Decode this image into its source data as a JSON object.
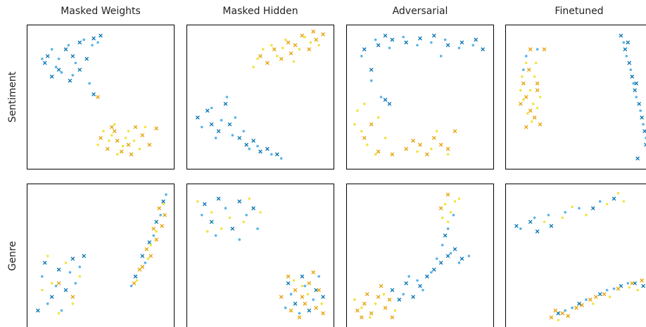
{
  "chart_data": [
    {
      "type": "scatter",
      "title": "Masked Weights",
      "ylabel": "Sentiment",
      "xlim": [
        0,
        100
      ],
      "ylim": [
        0,
        100
      ],
      "series": [
        {
          "color": "#0072b2",
          "marker": "x",
          "x": [
            10,
            20,
            30,
            35,
            45,
            25,
            15,
            40,
            28,
            50,
            12,
            35,
            45
          ],
          "values": [
            75,
            70,
            80,
            90,
            93,
            85,
            65,
            78,
            62,
            95,
            80,
            70,
            52
          ]
        },
        {
          "color": "#56b4e9",
          "marker": "dot",
          "x": [
            8,
            18,
            27,
            38,
            44,
            22,
            32,
            42,
            15,
            48,
            30,
            20
          ],
          "values": [
            78,
            72,
            88,
            92,
            88,
            68,
            75,
            60,
            85,
            90,
            66,
            78
          ]
        },
        {
          "color": "#e69f00",
          "marker": "x",
          "x": [
            50,
            60,
            70,
            80,
            65,
            55,
            75,
            90,
            85,
            62,
            72,
            58,
            48
          ],
          "values": [
            20,
            25,
            15,
            22,
            10,
            12,
            28,
            27,
            15,
            18,
            8,
            28,
            50
          ]
        },
        {
          "color": "#f0e442",
          "marker": "dot",
          "x": [
            48,
            58,
            68,
            78,
            62,
            52,
            70,
            82,
            66,
            74,
            56,
            60
          ],
          "values": [
            15,
            22,
            20,
            12,
            8,
            25,
            25,
            28,
            14,
            18,
            18,
            30
          ]
        }
      ]
    },
    {
      "type": "scatter",
      "title": "Masked Hidden",
      "xlim": [
        0,
        100
      ],
      "ylim": [
        0,
        100
      ],
      "series": [
        {
          "color": "#0072b2",
          "marker": "x",
          "x": [
            5,
            12,
            20,
            28,
            35,
            45,
            55,
            62,
            15,
            25,
            40,
            50
          ],
          "values": [
            35,
            40,
            25,
            30,
            20,
            18,
            12,
            8,
            30,
            45,
            15,
            10
          ]
        },
        {
          "color": "#56b4e9",
          "marker": "dot",
          "x": [
            8,
            15,
            22,
            30,
            38,
            48,
            58,
            65,
            18,
            32,
            42,
            26
          ],
          "values": [
            28,
            42,
            33,
            22,
            25,
            14,
            8,
            5,
            20,
            35,
            12,
            50
          ]
        },
        {
          "color": "#e69f00",
          "marker": "x",
          "x": [
            50,
            60,
            70,
            80,
            90,
            65,
            75,
            85,
            95,
            55,
            72,
            88
          ],
          "values": [
            80,
            85,
            90,
            95,
            92,
            78,
            88,
            85,
            96,
            75,
            82,
            98
          ]
        },
        {
          "color": "#f0e442",
          "marker": "dot",
          "x": [
            45,
            52,
            62,
            68,
            78,
            86,
            92,
            58,
            74,
            82,
            48,
            66
          ],
          "values": [
            72,
            85,
            80,
            92,
            85,
            90,
            88,
            88,
            76,
            94,
            78,
            86
          ]
        }
      ]
    },
    {
      "type": "scatter",
      "title": "Adversarial",
      "xlim": [
        0,
        100
      ],
      "ylim": [
        0,
        100
      ],
      "series": [
        {
          "color": "#0072b2",
          "marker": "x",
          "x": [
            10,
            20,
            30,
            40,
            50,
            60,
            70,
            80,
            90,
            95,
            15,
            25,
            25,
            28
          ],
          "values": [
            85,
            88,
            92,
            90,
            93,
            95,
            88,
            90,
            92,
            85,
            70,
            95,
            48,
            45
          ]
        },
        {
          "color": "#56b4e9",
          "marker": "dot",
          "x": [
            8,
            18,
            28,
            38,
            48,
            58,
            68,
            78,
            88,
            15,
            22,
            65
          ],
          "values": [
            80,
            92,
            86,
            94,
            88,
            90,
            92,
            86,
            88,
            62,
            50,
            80
          ]
        },
        {
          "color": "#e69f00",
          "marker": "x",
          "x": [
            10,
            20,
            30,
            40,
            50,
            55,
            60,
            70,
            75,
            65,
            15,
            45
          ],
          "values": [
            20,
            10,
            8,
            12,
            15,
            8,
            20,
            12,
            25,
            15,
            30,
            18
          ]
        },
        {
          "color": "#f0e442",
          "marker": "dot",
          "x": [
            5,
            8,
            12,
            18,
            25,
            3,
            48,
            58,
            62,
            70,
            10,
            20
          ],
          "values": [
            40,
            25,
            15,
            8,
            20,
            30,
            10,
            12,
            25,
            8,
            45,
            35
          ]
        }
      ]
    },
    {
      "type": "scatter",
      "title": "Finetuned",
      "xlim": [
        0,
        100
      ],
      "ylim": [
        0,
        100
      ],
      "series": [
        {
          "color": "#0072b2",
          "marker": "x",
          "x": [
            80,
            83,
            86,
            88,
            90,
            93,
            95,
            97,
            98,
            92,
            85,
            91
          ],
          "values": [
            95,
            85,
            75,
            65,
            55,
            45,
            35,
            25,
            15,
            5,
            90,
            60
          ]
        },
        {
          "color": "#56b4e9",
          "marker": "dot",
          "x": [
            82,
            84,
            87,
            89,
            91,
            94,
            96,
            98,
            99,
            12,
            10,
            20
          ],
          "values": [
            90,
            80,
            70,
            60,
            50,
            40,
            30,
            20,
            10,
            80,
            70,
            85
          ]
        },
        {
          "color": "#e69f00",
          "marker": "x",
          "x": [
            15,
            25,
            10,
            12,
            15,
            18,
            22,
            20,
            8,
            14,
            20,
            12
          ],
          "values": [
            85,
            85,
            60,
            50,
            40,
            35,
            30,
            55,
            45,
            70,
            60,
            28
          ]
        },
        {
          "color": "#f0e442",
          "marker": "dot",
          "x": [
            12,
            18,
            15,
            10,
            20,
            16,
            8,
            22,
            13,
            17,
            9,
            19
          ],
          "values": [
            75,
            65,
            55,
            48,
            42,
            32,
            55,
            50,
            38,
            45,
            65,
            75
          ]
        }
      ]
    },
    {
      "type": "scatter",
      "ylabel": "Genre",
      "xlim": [
        0,
        100
      ],
      "ylim": [
        0,
        100
      ],
      "series": [
        {
          "color": "#0072b2",
          "marker": "x",
          "x": [
            10,
            20,
            30,
            38,
            15,
            25,
            5,
            75,
            80,
            85,
            90,
            95
          ],
          "values": [
            45,
            40,
            48,
            50,
            20,
            25,
            10,
            35,
            50,
            60,
            75,
            90
          ]
        },
        {
          "color": "#56b4e9",
          "marker": "dot",
          "x": [
            8,
            18,
            28,
            35,
            12,
            22,
            32,
            72,
            82,
            88,
            93,
            97
          ],
          "values": [
            35,
            28,
            38,
            42,
            15,
            10,
            30,
            28,
            45,
            65,
            80,
            95
          ]
        },
        {
          "color": "#e69f00",
          "marker": "x",
          "x": [
            78,
            83,
            88,
            92,
            96,
            86,
            74,
            90,
            20,
            30,
            94,
            80
          ],
          "values": [
            40,
            55,
            70,
            85,
            80,
            50,
            30,
            62,
            30,
            20,
            72,
            42
          ]
        },
        {
          "color": "#f0e442",
          "marker": "dot",
          "x": [
            12,
            25,
            15,
            30,
            8,
            20,
            35,
            76,
            84,
            90,
            95,
            86
          ],
          "values": [
            50,
            45,
            30,
            15,
            25,
            8,
            35,
            32,
            48,
            68,
            88,
            58
          ]
        }
      ]
    },
    {
      "type": "scatter",
      "xlim": [
        0,
        100
      ],
      "ylim": [
        0,
        100
      ],
      "series": [
        {
          "color": "#0072b2",
          "marker": "x",
          "x": [
            10,
            20,
            35,
            45,
            15,
            30,
            70,
            80,
            90,
            75,
            85,
            95
          ],
          "values": [
            88,
            92,
            90,
            85,
            75,
            70,
            30,
            35,
            25,
            15,
            10,
            20
          ]
        },
        {
          "color": "#56b4e9",
          "marker": "dot",
          "x": [
            8,
            25,
            40,
            18,
            35,
            48,
            72,
            82,
            92,
            78,
            88,
            68
          ],
          "values": [
            80,
            85,
            80,
            65,
            62,
            70,
            22,
            28,
            35,
            8,
            18,
            12
          ]
        },
        {
          "color": "#e69f00",
          "marker": "x",
          "x": [
            70,
            80,
            90,
            85,
            75,
            95,
            65,
            88,
            78,
            92,
            72,
            82
          ],
          "values": [
            35,
            20,
            12,
            30,
            25,
            8,
            20,
            38,
            5,
            25,
            10,
            15
          ]
        },
        {
          "color": "#f0e442",
          "marker": "dot",
          "x": [
            5,
            15,
            28,
            42,
            22,
            38,
            50,
            12,
            74,
            84,
            94,
            80
          ],
          "values": [
            90,
            82,
            78,
            92,
            70,
            75,
            82,
            68,
            32,
            22,
            15,
            28
          ]
        }
      ]
    },
    {
      "type": "scatter",
      "xlim": [
        0,
        100
      ],
      "ylim": [
        0,
        100
      ],
      "series": [
        {
          "color": "#0072b2",
          "marker": "x",
          "x": [
            30,
            40,
            45,
            55,
            60,
            65,
            70,
            75,
            80,
            68,
            35,
            50
          ],
          "values": [
            25,
            30,
            20,
            35,
            40,
            45,
            50,
            55,
            48,
            65,
            18,
            28
          ]
        },
        {
          "color": "#56b4e9",
          "marker": "dot",
          "x": [
            38,
            48,
            58,
            62,
            72,
            78,
            85,
            66,
            70,
            74,
            52,
            42
          ],
          "values": [
            22,
            32,
            38,
            48,
            52,
            45,
            50,
            58,
            70,
            80,
            25,
            35
          ]
        },
        {
          "color": "#e69f00",
          "marker": "x",
          "x": [
            5,
            10,
            15,
            20,
            25,
            30,
            12,
            22,
            28,
            8,
            70,
            65
          ],
          "values": [
            10,
            15,
            8,
            20,
            12,
            5,
            22,
            28,
            18,
            5,
            95,
            85
          ]
        },
        {
          "color": "#f0e442",
          "marker": "dot",
          "x": [
            8,
            18,
            24,
            14,
            70,
            75,
            68,
            72,
            78,
            66,
            32,
            3
          ],
          "values": [
            12,
            15,
            22,
            5,
            75,
            90,
            88,
            82,
            92,
            78,
            10,
            18
          ]
        }
      ]
    },
    {
      "type": "scatter",
      "xlim": [
        0,
        100
      ],
      "ylim": [
        0,
        100
      ],
      "series": [
        {
          "color": "#0072b2",
          "marker": "x",
          "x": [
            5,
            15,
            20,
            30,
            60,
            75,
            35,
            50,
            65,
            80,
            90,
            96
          ],
          "values": [
            72,
            75,
            68,
            72,
            85,
            92,
            8,
            15,
            22,
            28,
            30,
            28
          ]
        },
        {
          "color": "#56b4e9",
          "marker": "dot",
          "x": [
            8,
            18,
            28,
            40,
            50,
            65,
            40,
            55,
            70,
            85,
            45,
            75
          ],
          "values": [
            70,
            78,
            80,
            82,
            85,
            90,
            10,
            18,
            25,
            30,
            12,
            26
          ]
        },
        {
          "color": "#e69f00",
          "marker": "x",
          "x": [
            30,
            38,
            48,
            58,
            68,
            78,
            88,
            42,
            52,
            62,
            95,
            33
          ],
          "values": [
            5,
            8,
            12,
            18,
            22,
            26,
            30,
            6,
            14,
            20,
            32,
            10
          ]
        },
        {
          "color": "#f0e442",
          "marker": "dot",
          "x": [
            25,
            45,
            55,
            70,
            78,
            82,
            35,
            60,
            72,
            86,
            92,
            38
          ],
          "values": [
            75,
            86,
            80,
            88,
            96,
            90,
            3,
            15,
            20,
            27,
            25,
            78
          ]
        }
      ]
    }
  ]
}
